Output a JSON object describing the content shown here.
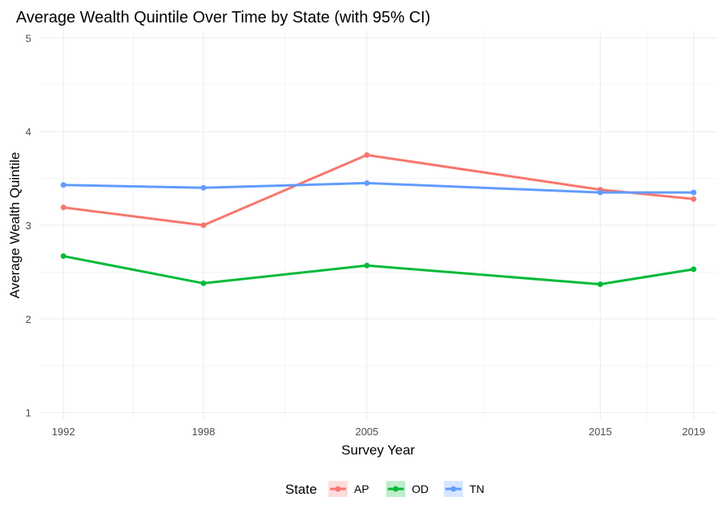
{
  "chart_data": {
    "type": "line",
    "title": "Average Wealth Quintile Over Time by State (with 95% CI)",
    "xlabel": "Survey Year",
    "ylabel": "Average Wealth Quintile",
    "x": [
      1992,
      1998,
      2005,
      2015,
      2019
    ],
    "x_tick_labels": [
      "1992",
      "1998",
      "2005",
      "2015",
      "2019"
    ],
    "xlim": [
      1991.0,
      2020.0
    ],
    "y_ticks": [
      1,
      2,
      3,
      4,
      5
    ],
    "y_tick_labels": [
      "1",
      "2",
      "3",
      "4",
      "5"
    ],
    "ylim": [
      0.92,
      5.08
    ],
    "grid": true,
    "legend": {
      "title": "State",
      "position": "bottom"
    },
    "series": [
      {
        "name": "AP",
        "color": "#F8766D",
        "values": [
          3.19,
          3.0,
          3.75,
          3.38,
          3.28
        ]
      },
      {
        "name": "OD",
        "color": "#00BA38",
        "values": [
          2.67,
          2.38,
          2.57,
          2.37,
          2.53
        ]
      },
      {
        "name": "TN",
        "color": "#619CFF",
        "values": [
          3.43,
          3.4,
          3.45,
          3.35,
          3.35
        ]
      }
    ]
  }
}
